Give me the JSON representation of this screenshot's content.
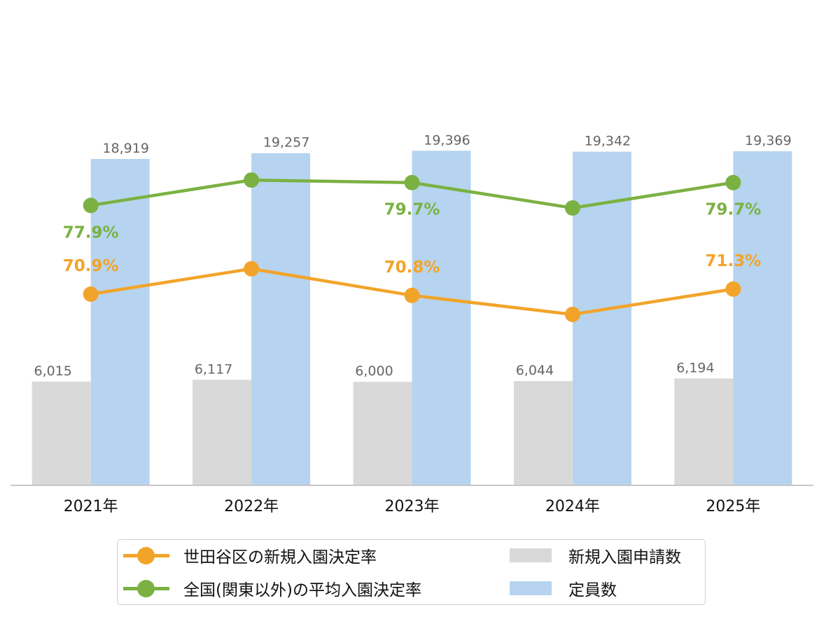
{
  "colors": {
    "setagaya_rate": "#F2A42A",
    "national_rate": "#7BB142",
    "applicants": "#D9D9D9",
    "capacity": "#B6D4EF",
    "bar_value_label": "#666666",
    "axis_line": "#C8C8C8",
    "axis_text": "#111111"
  },
  "chart_data": {
    "type": "bar",
    "title": "",
    "xlabel": "",
    "ylabel": "",
    "categories": [
      "2021年",
      "2022年",
      "2023年",
      "2024年",
      "2025年"
    ],
    "bar_axis": {
      "ylim": [
        0,
        23000
      ]
    },
    "line_axis": {
      "ylim": [
        50,
        95
      ]
    },
    "grid": false,
    "legend_position": "bottom",
    "series": [
      {
        "name": "新規入園申請数",
        "type": "bar",
        "values": [
          6015,
          6117,
          6000,
          6044,
          6194
        ],
        "labels": [
          "6,015",
          "6,117",
          "6,000",
          "6,044",
          "6,194"
        ]
      },
      {
        "name": "定員数",
        "type": "bar",
        "values": [
          18919,
          19257,
          19396,
          19342,
          19369
        ],
        "labels": [
          "18,919",
          "19,257",
          "19,396",
          "19,342",
          "19,369"
        ]
      },
      {
        "name": "世田谷区の新規入園決定率",
        "type": "line",
        "values": [
          70.9,
          72.9,
          70.8,
          69.3,
          71.3
        ],
        "labels": [
          "70.9%",
          "",
          "70.8%",
          "",
          "71.3%"
        ]
      },
      {
        "name": "全国(関東以外)の平均入園決定率",
        "type": "line",
        "values": [
          77.9,
          79.9,
          79.7,
          77.7,
          79.7
        ],
        "labels": [
          "77.9%",
          "",
          "79.7%",
          "",
          "79.7%"
        ]
      }
    ]
  },
  "legend": {
    "setagaya_rate": "世田谷区の新規入園決定率",
    "national_rate": "全国(関東以外)の平均入園決定率",
    "applicants": "新規入園申請数",
    "capacity": "定員数"
  }
}
